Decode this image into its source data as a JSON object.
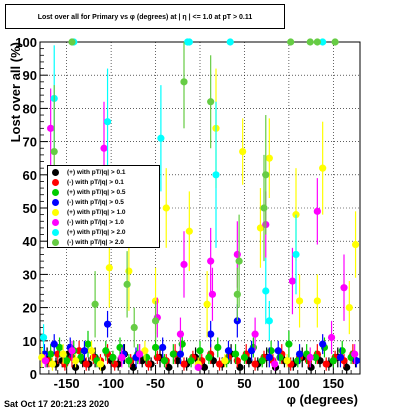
{
  "chart_data": {
    "type": "scatter",
    "title": "Lost over all for Primary vs φ (degrees) at | η | <= 1.0 at pT > 0.11",
    "xlabel": "φ (degrees)",
    "ylabel": "Lost over all (%)",
    "xlim": [
      -180,
      180
    ],
    "ylim": [
      0,
      100
    ],
    "x_ticks": [
      -150,
      -100,
      -50,
      0,
      50,
      100,
      150
    ],
    "y_ticks": [
      0,
      10,
      20,
      30,
      40,
      50,
      60,
      70,
      80,
      90,
      100
    ],
    "grid": true,
    "legend_position": "center-left",
    "timestamp": "Sat Oct 17 20:21:23 2020",
    "series": [
      {
        "name": "(+) with pT/|q| > 0.1",
        "color": "#000000",
        "points": [
          [
            -172,
            5,
            3
          ],
          [
            -162,
            3,
            2
          ],
          [
            -155,
            4,
            2
          ],
          [
            -148,
            6,
            3
          ],
          [
            -140,
            2,
            2
          ],
          [
            -132,
            4,
            2
          ],
          [
            -125,
            3,
            2
          ],
          [
            -118,
            5,
            3
          ],
          [
            -110,
            2,
            2
          ],
          [
            -100,
            4,
            2
          ],
          [
            -92,
            3,
            2
          ],
          [
            -85,
            6,
            3
          ],
          [
            -75,
            2,
            2
          ],
          [
            -65,
            4,
            2
          ],
          [
            -55,
            3,
            2
          ],
          [
            -45,
            5,
            3
          ],
          [
            -35,
            2,
            2
          ],
          [
            -25,
            4,
            2
          ],
          [
            -15,
            3,
            2
          ],
          [
            -5,
            5,
            3
          ],
          [
            5,
            2,
            2
          ],
          [
            15,
            4,
            2
          ],
          [
            25,
            3,
            2
          ],
          [
            35,
            6,
            3
          ],
          [
            45,
            2,
            2
          ],
          [
            55,
            4,
            2
          ],
          [
            65,
            3,
            2
          ],
          [
            75,
            5,
            3
          ],
          [
            85,
            2,
            2
          ],
          [
            95,
            4,
            2
          ],
          [
            105,
            3,
            2
          ],
          [
            115,
            5,
            3
          ],
          [
            125,
            2,
            2
          ],
          [
            135,
            4,
            2
          ],
          [
            145,
            3,
            2
          ],
          [
            155,
            5,
            3
          ],
          [
            165,
            2,
            2
          ],
          [
            175,
            4,
            2
          ]
        ]
      },
      {
        "name": "(-) with pT/|q| > 0.1",
        "color": "#ff0000",
        "points": [
          [
            -170,
            4,
            2
          ],
          [
            -160,
            6,
            3
          ],
          [
            -152,
            3,
            2
          ],
          [
            -144,
            5,
            3
          ],
          [
            -136,
            7,
            3
          ],
          [
            -128,
            3,
            2
          ],
          [
            -120,
            5,
            2
          ],
          [
            -112,
            4,
            2
          ],
          [
            -104,
            6,
            3
          ],
          [
            -96,
            3,
            2
          ],
          [
            -88,
            5,
            2
          ],
          [
            -78,
            4,
            2
          ],
          [
            -68,
            6,
            3
          ],
          [
            -58,
            3,
            2
          ],
          [
            -48,
            5,
            2
          ],
          [
            -38,
            4,
            2
          ],
          [
            -28,
            6,
            3
          ],
          [
            -18,
            3,
            2
          ],
          [
            -8,
            5,
            2
          ],
          [
            2,
            4,
            2
          ],
          [
            12,
            6,
            3
          ],
          [
            22,
            3,
            2
          ],
          [
            32,
            5,
            2
          ],
          [
            42,
            4,
            2
          ],
          [
            52,
            6,
            3
          ],
          [
            62,
            3,
            2
          ],
          [
            72,
            5,
            2
          ],
          [
            82,
            4,
            2
          ],
          [
            92,
            6,
            3
          ],
          [
            102,
            3,
            2
          ],
          [
            112,
            5,
            2
          ],
          [
            122,
            4,
            2
          ],
          [
            132,
            6,
            3
          ],
          [
            142,
            3,
            2
          ],
          [
            152,
            5,
            2
          ],
          [
            162,
            4,
            2
          ],
          [
            172,
            6,
            3
          ]
        ]
      },
      {
        "name": "(+) with pT/|q| > 0.5",
        "color": "#00cc00",
        "points": [
          [
            -168,
            6,
            3
          ],
          [
            -158,
            8,
            3
          ],
          [
            -150,
            4,
            2
          ],
          [
            -142,
            7,
            3
          ],
          [
            -134,
            5,
            2
          ],
          [
            -126,
            9,
            4
          ],
          [
            -116,
            4,
            2
          ],
          [
            -106,
            7,
            3
          ],
          [
            -98,
            5,
            2
          ],
          [
            -90,
            8,
            3
          ],
          [
            -80,
            4,
            2
          ],
          [
            -70,
            6,
            3
          ],
          [
            -60,
            5,
            2
          ],
          [
            -50,
            8,
            3
          ],
          [
            -40,
            4,
            2
          ],
          [
            -30,
            6,
            3
          ],
          [
            -20,
            9,
            4
          ],
          [
            -10,
            4,
            2
          ],
          [
            0,
            7,
            3
          ],
          [
            10,
            5,
            2
          ],
          [
            20,
            8,
            3
          ],
          [
            30,
            4,
            2
          ],
          [
            40,
            6,
            3
          ],
          [
            50,
            5,
            2
          ],
          [
            60,
            8,
            3
          ],
          [
            70,
            4,
            2
          ],
          [
            80,
            7,
            3
          ],
          [
            90,
            5,
            2
          ],
          [
            100,
            9,
            4
          ],
          [
            110,
            4,
            2
          ],
          [
            120,
            6,
            3
          ],
          [
            130,
            5,
            2
          ],
          [
            140,
            8,
            3
          ],
          [
            150,
            4,
            2
          ],
          [
            160,
            7,
            3
          ],
          [
            170,
            5,
            2
          ]
        ]
      },
      {
        "name": "(-) with pT/|q| > 0.5",
        "color": "#0000ff",
        "points": [
          [
            -175,
            6,
            3
          ],
          [
            -164,
            9,
            3
          ],
          [
            -146,
            8,
            3
          ],
          [
            -130,
            7,
            3
          ],
          [
            -104,
            15,
            4
          ],
          [
            -86,
            6,
            3
          ],
          [
            -72,
            5,
            3
          ],
          [
            -42,
            8,
            3
          ],
          [
            -22,
            6,
            3
          ],
          [
            12,
            12,
            4
          ],
          [
            32,
            7,
            3
          ],
          [
            42,
            16,
            5
          ],
          [
            58,
            7,
            3
          ],
          [
            78,
            5,
            3
          ],
          [
            88,
            7,
            3
          ],
          [
            112,
            6,
            3
          ],
          [
            138,
            9,
            3
          ],
          [
            158,
            5,
            3
          ],
          [
            176,
            4,
            2
          ]
        ]
      },
      {
        "name": "(+) with pT/|q| > 1.0",
        "color": "#ffff00",
        "points": [
          [
            -178,
            5,
            3
          ],
          [
            -166,
            3,
            2
          ],
          [
            -154,
            6,
            3
          ],
          [
            -140,
            4,
            2
          ],
          [
            -122,
            7,
            3
          ],
          [
            -112,
            3,
            2
          ],
          [
            -102,
            32,
            12
          ],
          [
            -80,
            31,
            12
          ],
          [
            -62,
            7,
            3
          ],
          [
            -50,
            22,
            10
          ],
          [
            -38,
            50,
            12
          ],
          [
            -12,
            43,
            12
          ],
          [
            -2,
            3,
            2
          ],
          [
            8,
            21,
            10
          ],
          [
            18,
            74,
            18
          ],
          [
            28,
            4,
            2
          ],
          [
            48,
            67,
            10
          ],
          [
            68,
            44,
            12
          ],
          [
            78,
            65,
            12
          ],
          [
            98,
            4,
            2
          ],
          [
            108,
            48,
            14
          ],
          [
            112,
            22,
            8
          ],
          [
            132,
            22,
            8
          ],
          [
            138,
            62,
            14
          ],
          [
            168,
            20,
            8
          ],
          [
            175,
            39,
            10
          ]
        ]
      },
      {
        "name": "(-) with pT/|q| > 1.0",
        "color": "#ff00ff",
        "points": [
          [
            -174,
            4,
            2
          ],
          [
            -168,
            74,
            12
          ],
          [
            -144,
            7,
            3
          ],
          [
            -108,
            68,
            14
          ],
          [
            -88,
            5,
            3
          ],
          [
            -68,
            6,
            3
          ],
          [
            -48,
            17,
            6
          ],
          [
            -22,
            12,
            5
          ],
          [
            -18,
            33,
            10
          ],
          [
            -2,
            2,
            1
          ],
          [
            12,
            34,
            10
          ],
          [
            14,
            24,
            8
          ],
          [
            42,
            36,
            10
          ],
          [
            62,
            12,
            5
          ],
          [
            74,
            45,
            10
          ],
          [
            84,
            3,
            2
          ],
          [
            104,
            28,
            10
          ],
          [
            124,
            5,
            3
          ],
          [
            132,
            49,
            10
          ],
          [
            148,
            11,
            5
          ],
          [
            162,
            26,
            10
          ],
          [
            174,
            6,
            3
          ]
        ]
      },
      {
        "name": "(+) with pT/|q| > 2.0",
        "color": "#00ffff",
        "points": [
          [
            -176,
            11,
            4
          ],
          [
            -164,
            83,
            16
          ],
          [
            -142,
            100,
            0
          ],
          [
            -104,
            76,
            16
          ],
          [
            -44,
            71,
            16
          ],
          [
            -14,
            100,
            0
          ],
          [
            -12,
            100,
            0
          ],
          [
            18,
            60,
            22
          ],
          [
            34,
            100,
            0
          ],
          [
            74,
            25,
            10
          ],
          [
            78,
            16,
            6
          ],
          [
            108,
            36,
            12
          ],
          [
            138,
            100,
            0
          ]
        ]
      },
      {
        "name": "(-) with pT/|q| > 2.0",
        "color": "#66cc44",
        "points": [
          [
            -164,
            67,
            20
          ],
          [
            -144,
            100,
            0
          ],
          [
            -118,
            21,
            10
          ],
          [
            -82,
            27,
            10
          ],
          [
            -74,
            14,
            6
          ],
          [
            -50,
            16,
            6
          ],
          [
            -18,
            88,
            14
          ],
          [
            12,
            82,
            14
          ],
          [
            42,
            24,
            8
          ],
          [
            44,
            34,
            14
          ],
          [
            72,
            50,
            16
          ],
          [
            74,
            60,
            18
          ],
          [
            102,
            100,
            0
          ],
          [
            124,
            100,
            0
          ],
          [
            132,
            100,
            0
          ],
          [
            152,
            100,
            0
          ]
        ]
      }
    ]
  }
}
